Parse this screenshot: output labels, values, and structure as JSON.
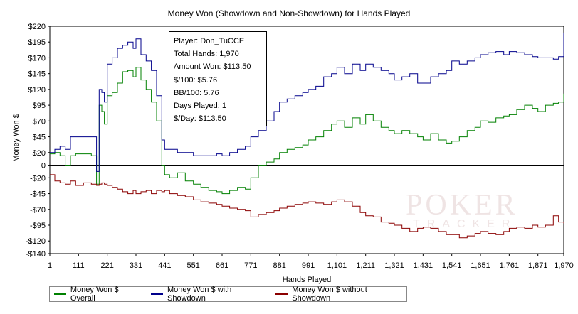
{
  "chart_data": {
    "type": "line",
    "title": "Money Won (Showdown and Non-Showdown) for Hands Played",
    "xlabel": "Hands Played",
    "ylabel": "Money Won $",
    "xlim": [
      1,
      1970
    ],
    "ylim": [
      -140,
      220
    ],
    "x_ticks": [
      1,
      111,
      221,
      331,
      441,
      551,
      661,
      771,
      881,
      991,
      1101,
      1211,
      1321,
      1431,
      1541,
      1651,
      1761,
      1871,
      1970
    ],
    "x_tick_labels": [
      "1",
      "111",
      "221",
      "331",
      "441",
      "551",
      "661",
      "771",
      "881",
      "991",
      "1,101",
      "1,211",
      "1,321",
      "1,431",
      "1,541",
      "1,651",
      "1,761",
      "1,871",
      "1,970"
    ],
    "y_ticks": [
      220,
      195,
      170,
      145,
      120,
      95,
      70,
      45,
      20,
      0,
      -20,
      -45,
      -70,
      -95,
      -120,
      -140
    ],
    "y_tick_labels": [
      "$220",
      "$195",
      "$170",
      "$145",
      "$120",
      "$95",
      "$70",
      "$45",
      "$20",
      "0",
      "-$20",
      "-$45",
      "-$70",
      "-$95",
      "-$120",
      "-$140"
    ],
    "grid": false,
    "legend_position": "bottom",
    "series": [
      {
        "name": "Money Won $ Overall",
        "color": "#008000",
        "x": [
          1,
          20,
          40,
          60,
          80,
          100,
          130,
          160,
          180,
          190,
          200,
          210,
          221,
          240,
          260,
          280,
          300,
          320,
          331,
          350,
          370,
          390,
          410,
          430,
          441,
          460,
          490,
          520,
          551,
          580,
          610,
          640,
          661,
          690,
          720,
          750,
          771,
          800,
          830,
          860,
          881,
          910,
          940,
          970,
          991,
          1020,
          1050,
          1080,
          1101,
          1130,
          1160,
          1190,
          1211,
          1240,
          1270,
          1300,
          1321,
          1350,
          1380,
          1410,
          1431,
          1460,
          1490,
          1520,
          1541,
          1570,
          1600,
          1630,
          1651,
          1680,
          1710,
          1740,
          1761,
          1790,
          1820,
          1850,
          1871,
          1900,
          1930,
          1950,
          1970
        ],
        "y": [
          18,
          20,
          15,
          0,
          15,
          18,
          18,
          15,
          -30,
          95,
          85,
          65,
          110,
          115,
          130,
          148,
          150,
          140,
          155,
          135,
          120,
          100,
          70,
          0,
          -15,
          -20,
          -12,
          -25,
          -30,
          -35,
          -40,
          -42,
          -45,
          -40,
          -35,
          -38,
          -20,
          0,
          5,
          10,
          20,
          25,
          28,
          32,
          40,
          45,
          55,
          65,
          70,
          60,
          75,
          65,
          80,
          70,
          60,
          55,
          50,
          55,
          50,
          45,
          40,
          50,
          40,
          35,
          38,
          45,
          55,
          60,
          70,
          68,
          75,
          78,
          80,
          88,
          95,
          90,
          85,
          95,
          98,
          100,
          113.5
        ]
      },
      {
        "name": "Money Won $ with Showdown",
        "color": "#00008b",
        "x": [
          1,
          20,
          40,
          60,
          80,
          100,
          130,
          160,
          180,
          190,
          200,
          210,
          221,
          240,
          260,
          280,
          300,
          320,
          331,
          350,
          370,
          390,
          410,
          430,
          441,
          460,
          490,
          520,
          551,
          580,
          610,
          640,
          661,
          690,
          720,
          750,
          771,
          800,
          830,
          860,
          881,
          910,
          940,
          970,
          991,
          1020,
          1050,
          1080,
          1101,
          1130,
          1160,
          1190,
          1211,
          1240,
          1270,
          1300,
          1321,
          1350,
          1380,
          1410,
          1431,
          1460,
          1490,
          1520,
          1541,
          1570,
          1600,
          1630,
          1651,
          1680,
          1710,
          1740,
          1761,
          1790,
          1820,
          1850,
          1871,
          1900,
          1930,
          1950,
          1970
        ],
        "y": [
          20,
          25,
          30,
          25,
          45,
          45,
          45,
          45,
          -10,
          120,
          115,
          100,
          160,
          170,
          185,
          190,
          195,
          185,
          200,
          175,
          165,
          150,
          110,
          40,
          25,
          25,
          20,
          20,
          15,
          15,
          15,
          18,
          15,
          20,
          25,
          30,
          45,
          55,
          70,
          85,
          100,
          105,
          110,
          115,
          120,
          125,
          140,
          145,
          155,
          145,
          160,
          150,
          160,
          155,
          150,
          145,
          135,
          140,
          145,
          130,
          130,
          140,
          145,
          150,
          165,
          160,
          165,
          170,
          175,
          178,
          180,
          175,
          180,
          178,
          175,
          172,
          170,
          170,
          168,
          172,
          210
        ]
      },
      {
        "name": "Money Won $ without Showdown",
        "color": "#8b0000",
        "x": [
          1,
          20,
          40,
          60,
          80,
          100,
          130,
          160,
          180,
          190,
          200,
          210,
          221,
          240,
          260,
          280,
          300,
          320,
          331,
          350,
          370,
          390,
          410,
          430,
          441,
          460,
          490,
          520,
          551,
          580,
          610,
          640,
          661,
          690,
          720,
          750,
          771,
          800,
          830,
          860,
          881,
          910,
          940,
          970,
          991,
          1020,
          1050,
          1080,
          1101,
          1130,
          1160,
          1190,
          1211,
          1240,
          1270,
          1300,
          1321,
          1350,
          1380,
          1410,
          1431,
          1460,
          1490,
          1520,
          1541,
          1570,
          1600,
          1630,
          1651,
          1680,
          1710,
          1740,
          1761,
          1790,
          1820,
          1850,
          1871,
          1900,
          1930,
          1950,
          1970
        ],
        "y": [
          -15,
          -25,
          -28,
          -30,
          -25,
          -32,
          -28,
          -30,
          -32,
          -30,
          -28,
          -30,
          -32,
          -35,
          -38,
          -42,
          -45,
          -40,
          -45,
          -42,
          -40,
          -45,
          -40,
          -42,
          -40,
          -45,
          -48,
          -50,
          -55,
          -58,
          -60,
          -62,
          -65,
          -68,
          -70,
          -72,
          -82,
          -78,
          -75,
          -72,
          -68,
          -65,
          -62,
          -60,
          -58,
          -60,
          -62,
          -58,
          -55,
          -58,
          -65,
          -75,
          -80,
          -82,
          -90,
          -92,
          -95,
          -100,
          -105,
          -100,
          -98,
          -100,
          -105,
          -110,
          -110,
          -115,
          -112,
          -108,
          -105,
          -108,
          -110,
          -105,
          -100,
          -98,
          -100,
          -95,
          -98,
          -95,
          -80,
          -90,
          -92
        ]
      }
    ]
  },
  "tooltip": {
    "player": "Player: Don_TuCCE",
    "total_hands": "Total Hands: 1,970",
    "amount_won": "Amount Won: $113.50",
    "per100": "$/100: $5.76",
    "bb100": "BB/100: 5.76",
    "days_played": "Days Played: 1",
    "per_day": "$/Day: $113.50"
  },
  "legend": {
    "overall": "Money Won $ Overall",
    "showdown": "Money Won $ with Showdown",
    "non_showdown": "Money Won $ without Showdown"
  },
  "watermark": {
    "line1": "POKER",
    "line2": "TRACKER"
  }
}
